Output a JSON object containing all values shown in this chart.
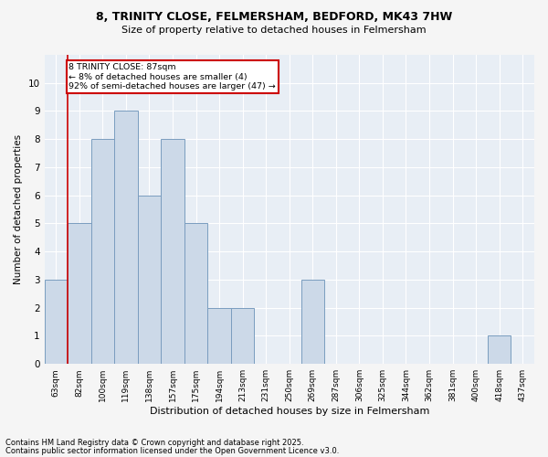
{
  "title1": "8, TRINITY CLOSE, FELMERSHAM, BEDFORD, MK43 7HW",
  "title2": "Size of property relative to detached houses in Felmersham",
  "xlabel": "Distribution of detached houses by size in Felmersham",
  "ylabel": "Number of detached properties",
  "categories": [
    "63sqm",
    "82sqm",
    "100sqm",
    "119sqm",
    "138sqm",
    "157sqm",
    "175sqm",
    "194sqm",
    "213sqm",
    "231sqm",
    "250sqm",
    "269sqm",
    "287sqm",
    "306sqm",
    "325sqm",
    "344sqm",
    "362sqm",
    "381sqm",
    "400sqm",
    "418sqm",
    "437sqm"
  ],
  "values": [
    3,
    5,
    8,
    9,
    6,
    8,
    5,
    2,
    2,
    0,
    0,
    3,
    0,
    0,
    0,
    0,
    0,
    0,
    0,
    1,
    0
  ],
  "bar_color": "#ccd9e8",
  "bar_edgecolor": "#7a9dbf",
  "annotation_text": "8 TRINITY CLOSE: 87sqm\n← 8% of detached houses are smaller (4)\n92% of semi-detached houses are larger (47) →",
  "annotation_box_color": "#ffffff",
  "annotation_box_edgecolor": "#cc0000",
  "vline_color": "#cc0000",
  "ylim": [
    0,
    11
  ],
  "yticks": [
    0,
    1,
    2,
    3,
    4,
    5,
    6,
    7,
    8,
    9,
    10,
    11
  ],
  "background_color": "#e8eef5",
  "grid_color": "#ffffff",
  "fig_color": "#f5f5f5",
  "footer1": "Contains HM Land Registry data © Crown copyright and database right 2025.",
  "footer2": "Contains public sector information licensed under the Open Government Licence v3.0."
}
